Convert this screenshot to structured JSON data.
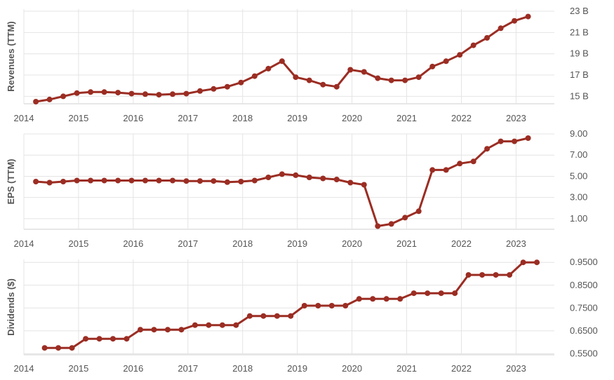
{
  "style": {
    "line_color": "#9b2d23",
    "grid_color": "#e4e4e4",
    "text_color": "#555555"
  },
  "chart_data": [
    {
      "type": "line",
      "ylabel": "Revenues (TTM)",
      "y_unit_suffix": " B",
      "yticks": [
        15,
        17,
        19,
        21,
        23
      ],
      "ylim": [
        14.3,
        23.2
      ],
      "xticks": [
        "2014",
        "2015",
        "2016",
        "2017",
        "2018",
        "2019",
        "2020",
        "2021",
        "2022",
        "2023"
      ],
      "xlim": [
        2014.0,
        2023.7
      ],
      "grid": true,
      "series": [
        {
          "x": [
            2014.22,
            2014.47,
            2014.72,
            2014.97,
            2015.22,
            2015.47,
            2015.72,
            2015.97,
            2016.22,
            2016.47,
            2016.72,
            2016.97,
            2017.22,
            2017.47,
            2017.72,
            2017.97,
            2018.22,
            2018.47,
            2018.72,
            2018.97,
            2019.22,
            2019.47,
            2019.72,
            2019.97,
            2020.22,
            2020.47,
            2020.72,
            2020.97,
            2021.22,
            2021.47,
            2021.72,
            2021.97,
            2022.22,
            2022.47,
            2022.72,
            2022.97,
            2023.22
          ],
          "y": [
            14.5,
            14.7,
            15.0,
            15.3,
            15.4,
            15.4,
            15.35,
            15.25,
            15.2,
            15.15,
            15.2,
            15.25,
            15.5,
            15.7,
            15.9,
            16.3,
            16.9,
            17.6,
            18.3,
            16.8,
            16.5,
            16.1,
            15.9,
            17.5,
            17.3,
            16.7,
            16.5,
            16.5,
            16.8,
            17.8,
            18.3,
            18.9,
            19.8,
            20.5,
            21.4,
            22.1,
            22.5
          ]
        }
      ]
    },
    {
      "type": "line",
      "ylabel": "EPS (TTM)",
      "yticks": [
        "1.00",
        "3.00",
        "5.00",
        "7.00",
        "9.00"
      ],
      "ylim": [
        0.0,
        9.0
      ],
      "xticks": [
        "2014",
        "2015",
        "2016",
        "2017",
        "2018",
        "2019",
        "2020",
        "2021",
        "2022",
        "2023"
      ],
      "xlim": [
        2014.0,
        2023.7
      ],
      "grid": true,
      "series": [
        {
          "x": [
            2014.22,
            2014.47,
            2014.72,
            2014.97,
            2015.22,
            2015.47,
            2015.72,
            2015.97,
            2016.22,
            2016.47,
            2016.72,
            2016.97,
            2017.22,
            2017.47,
            2017.72,
            2017.97,
            2018.22,
            2018.47,
            2018.72,
            2018.97,
            2019.22,
            2019.47,
            2019.72,
            2019.97,
            2020.22,
            2020.47,
            2020.72,
            2020.97,
            2021.22,
            2021.47,
            2021.72,
            2021.97,
            2022.22,
            2022.47,
            2022.72,
            2022.97,
            2023.22
          ],
          "y": [
            4.5,
            4.4,
            4.5,
            4.6,
            4.6,
            4.6,
            4.6,
            4.6,
            4.6,
            4.6,
            4.6,
            4.55,
            4.55,
            4.55,
            4.45,
            4.5,
            4.6,
            4.9,
            5.2,
            5.1,
            4.9,
            4.8,
            4.7,
            4.4,
            4.2,
            0.3,
            0.5,
            1.1,
            1.7,
            5.6,
            5.6,
            6.2,
            6.4,
            7.6,
            8.3,
            8.3,
            8.6
          ]
        }
      ]
    },
    {
      "type": "line",
      "ylabel": "Dividends ($)",
      "yticks": [
        "0.5500",
        "0.6500",
        "0.7500",
        "0.8500",
        "0.9500"
      ],
      "ylim": [
        0.545,
        0.963
      ],
      "xticks": [
        "2014",
        "2015",
        "2016",
        "2017",
        "2018",
        "2019",
        "2020",
        "2021",
        "2022",
        "2023"
      ],
      "xlim": [
        2014.0,
        2023.7
      ],
      "grid": true,
      "series": [
        {
          "x": [
            2014.38,
            2014.63,
            2014.88,
            2015.13,
            2015.38,
            2015.63,
            2015.88,
            2016.13,
            2016.38,
            2016.63,
            2016.88,
            2017.13,
            2017.38,
            2017.63,
            2017.88,
            2018.13,
            2018.38,
            2018.63,
            2018.88,
            2019.13,
            2019.38,
            2019.63,
            2019.88,
            2020.13,
            2020.38,
            2020.63,
            2020.88,
            2021.13,
            2021.38,
            2021.63,
            2021.88,
            2022.13,
            2022.38,
            2022.63,
            2022.88,
            2023.13,
            2023.38
          ],
          "y": [
            0.575,
            0.575,
            0.575,
            0.615,
            0.615,
            0.615,
            0.615,
            0.655,
            0.655,
            0.655,
            0.655,
            0.675,
            0.675,
            0.675,
            0.675,
            0.715,
            0.715,
            0.715,
            0.715,
            0.76,
            0.76,
            0.76,
            0.76,
            0.79,
            0.79,
            0.79,
            0.79,
            0.815,
            0.815,
            0.815,
            0.815,
            0.895,
            0.895,
            0.895,
            0.895,
            0.95,
            0.95
          ]
        }
      ]
    }
  ]
}
